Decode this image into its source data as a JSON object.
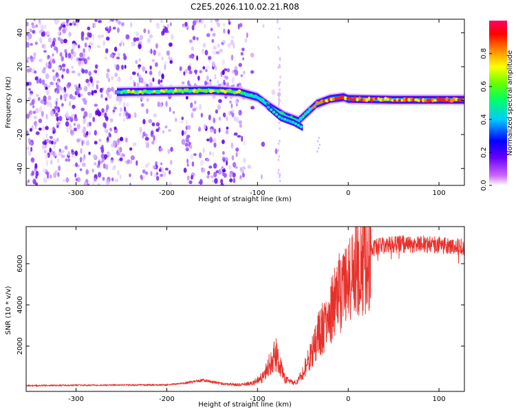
{
  "title": "C2E5.2026.110.02.21.R08",
  "chart_data": [
    {
      "type": "heatmap",
      "xlabel": "Height of straight line (km)",
      "ylabel": "Frequency (Hz)",
      "xlim": [
        -355,
        128
      ],
      "ylim": [
        -50,
        48
      ],
      "xticks": [
        -300,
        -200,
        -100,
        0,
        100
      ],
      "yticks": [
        -40,
        -20,
        0,
        20,
        40
      ],
      "xtick_labels": [
        "-300",
        "-200",
        "-100",
        "0",
        "100"
      ],
      "ytick_labels": [
        "-40",
        "-20",
        "0",
        "20",
        "40"
      ],
      "colorbar": {
        "label": "Normalized spectral amplitude",
        "range": [
          0,
          1
        ],
        "ticks": [
          0.0,
          0.2,
          0.4,
          0.6,
          0.8
        ],
        "tick_labels": [
          "0.0",
          "0.2",
          "0.4",
          "0.6",
          "0.8"
        ],
        "colors": [
          "#ffffff",
          "#cc66ff",
          "#6600ff",
          "#0000ff",
          "#00ccff",
          "#00ff66",
          "#66ff00",
          "#ffff00",
          "#ff8800",
          "#ff0000",
          "#ff0066"
        ]
      },
      "main_trace": {
        "x": [
          -255,
          -200,
          -150,
          -120,
          -100,
          -85,
          -70,
          -55,
          -45,
          -35,
          -20,
          -5,
          0,
          50,
          128
        ],
        "y": [
          5,
          5.5,
          6,
          5,
          2,
          -4,
          -9,
          -12,
          -7,
          -2,
          1,
          2,
          1,
          0.5,
          0.5
        ]
      },
      "secondary_trace": {
        "x": [
          -90,
          -75,
          -60,
          -50
        ],
        "y": [
          -3,
          -10,
          -13,
          -16
        ]
      }
    },
    {
      "type": "line",
      "xlabel": "Height of straight line (km)",
      "ylabel": "SNR (10 * v/v)",
      "xlim": [
        -355,
        128
      ],
      "ylim": [
        -200,
        7800
      ],
      "xticks": [
        -300,
        -200,
        -100,
        0,
        100
      ],
      "yticks": [
        2000,
        4000,
        6000
      ],
      "xtick_labels": [
        "-300",
        "-200",
        "-100",
        "0",
        "100"
      ],
      "ytick_labels": [
        "2000",
        "4000",
        "6000"
      ],
      "color": "#e8302a",
      "envelope": {
        "x": [
          -355,
          -300,
          -250,
          -200,
          -180,
          -160,
          -140,
          -120,
          -105,
          -95,
          -85,
          -80,
          -75,
          -70,
          -60,
          -55,
          -50,
          -45,
          -40,
          -35,
          -30,
          -25,
          -20,
          -15,
          -10,
          -5,
          0,
          5,
          10,
          15,
          20,
          25,
          30,
          40,
          60,
          80,
          100,
          128
        ],
        "y": [
          80,
          100,
          110,
          120,
          200,
          350,
          180,
          120,
          200,
          500,
          1200,
          1700,
          1000,
          400,
          200,
          350,
          700,
          1200,
          1700,
          2300,
          2800,
          3200,
          3700,
          4100,
          4500,
          4800,
          5000,
          5300,
          5800,
          6200,
          6500,
          6700,
          6800,
          6900,
          6950,
          6950,
          6900,
          6800
        ]
      }
    }
  ]
}
